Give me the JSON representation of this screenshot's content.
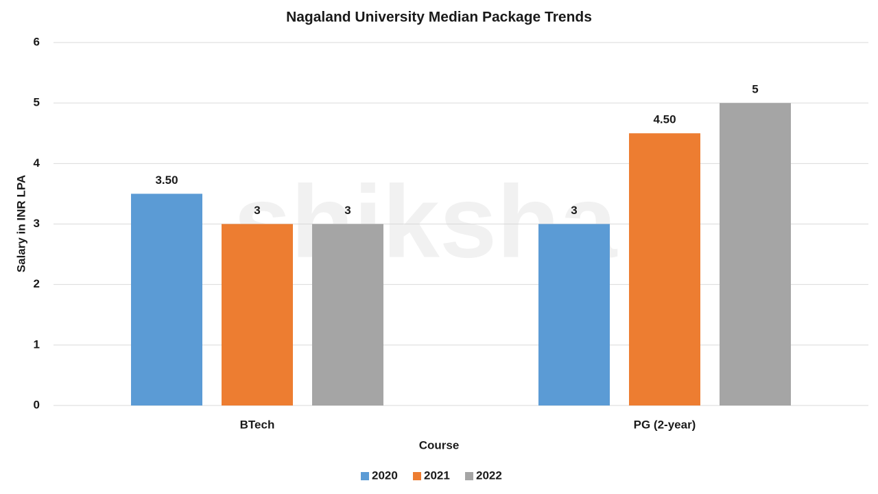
{
  "chart_data": {
    "type": "bar",
    "title": "Nagaland University Median Package Trends",
    "watermark": "shiksha",
    "x_label": "Course",
    "y_label": "Salary in INR LPA",
    "categories": [
      "BTech",
      "PG (2-year)"
    ],
    "series": [
      {
        "name": "2020",
        "color": "#5b9bd5",
        "values": [
          3.5,
          3
        ],
        "value_labels": [
          "3.50",
          "3"
        ]
      },
      {
        "name": "2021",
        "color": "#ed7d31",
        "values": [
          3,
          4.5
        ],
        "value_labels": [
          "3",
          "4.50"
        ]
      },
      {
        "name": "2022",
        "color": "#a5a5a5",
        "values": [
          3,
          5
        ],
        "value_labels": [
          "3",
          "5"
        ]
      }
    ],
    "ylim": [
      0,
      6
    ],
    "yticks": [
      0,
      1,
      2,
      3,
      4,
      5,
      6
    ],
    "grid": true,
    "legend": "bottom"
  }
}
